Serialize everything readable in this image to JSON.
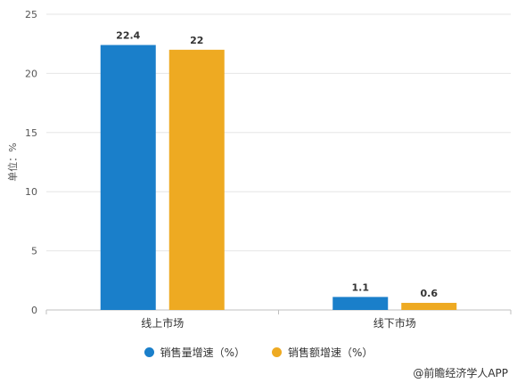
{
  "chart_data": {
    "type": "bar",
    "categories": [
      "线上市场",
      "线下市场"
    ],
    "series": [
      {
        "name": "销售量增速（%）",
        "values": [
          22.4,
          1.1
        ],
        "color": "#1a7fca"
      },
      {
        "name": "销售额增速（%）",
        "values": [
          22,
          0.6
        ],
        "color": "#eeaa22"
      }
    ],
    "data_labels": [
      [
        "22.4",
        "1.1"
      ],
      [
        "22",
        "0.6"
      ]
    ],
    "ylabel": "单位：%",
    "ylim": [
      0,
      25
    ],
    "yticks": [
      0,
      5,
      10,
      15,
      20,
      25
    ],
    "grid": true,
    "legend_position": "bottom"
  },
  "credit": "@前瞻经济学人APP"
}
